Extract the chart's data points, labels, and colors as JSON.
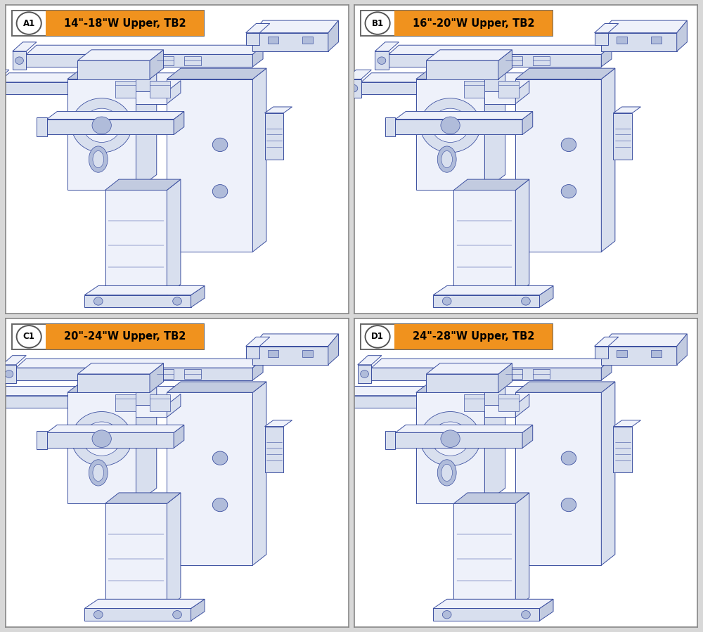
{
  "panels": [
    {
      "label": "A1",
      "title": "14\"-18\"W Upper, TB2",
      "row": 0,
      "col": 0
    },
    {
      "label": "B1",
      "title": "16\"-20\"W Upper, TB2",
      "row": 0,
      "col": 1
    },
    {
      "label": "C1",
      "title": "20\"-24\"W Upper, TB2",
      "row": 1,
      "col": 0
    },
    {
      "label": "D1",
      "title": "24\"-28\"W Upper, TB2",
      "row": 1,
      "col": 1
    }
  ],
  "orange_color": "#F0921E",
  "bg_color": "#FFFFFF",
  "outer_bg": "#D8D8D8",
  "border_color": "#888888",
  "draw_color": "#3B4FA0",
  "draw_lw": 0.7,
  "face_light": "#EEF1FA",
  "face_mid": "#D8DFEE",
  "face_dark": "#C2CBE0",
  "face_darker": "#B0BCDA"
}
